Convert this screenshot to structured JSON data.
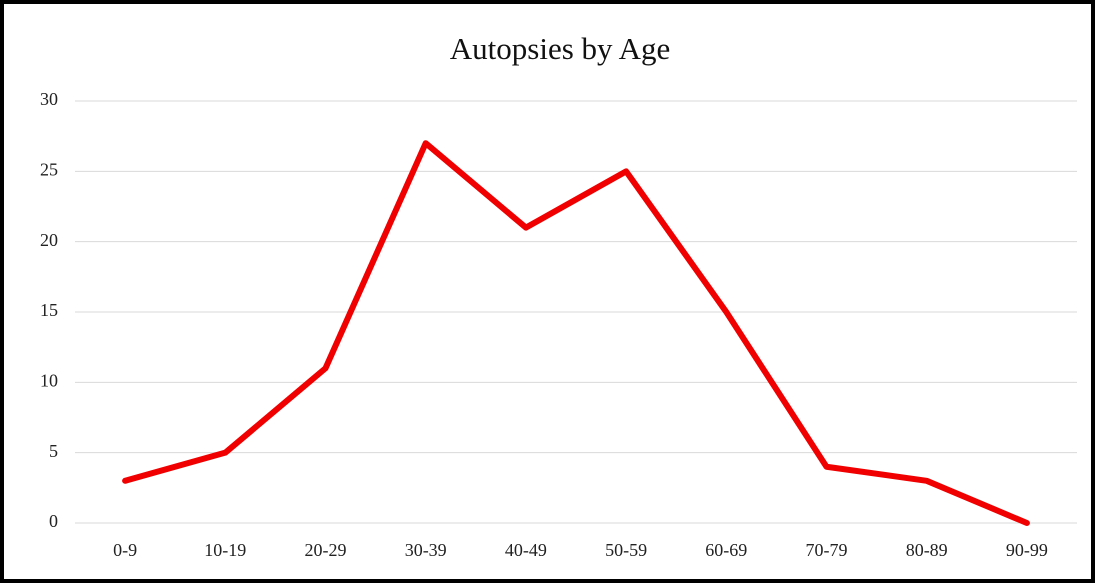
{
  "chart_data": {
    "type": "line",
    "title": "Autopsies by Age",
    "categories": [
      "0-9",
      "10-19",
      "20-29",
      "30-39",
      "40-49",
      "50-59",
      "60-69",
      "70-79",
      "80-89",
      "90-99"
    ],
    "values": [
      3,
      5,
      11,
      27,
      21,
      25,
      15,
      4,
      3,
      0
    ],
    "color": "#f00000",
    "ylim": [
      0,
      30
    ],
    "yticks": [
      0,
      5,
      10,
      15,
      20,
      25,
      30
    ],
    "grid": true
  }
}
